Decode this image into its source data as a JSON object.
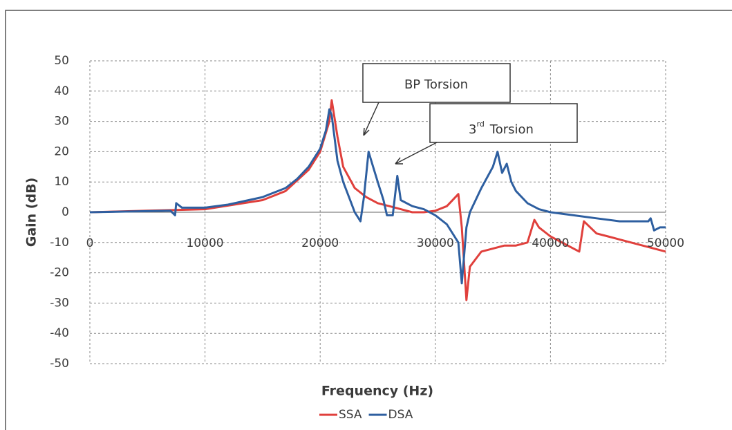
{
  "chart_data": {
    "type": "line",
    "x_label": "Frequency (Hz)",
    "y_label": "Gain (dB)",
    "xlim": [
      0,
      50000
    ],
    "xticks": [
      0,
      10000,
      20000,
      30000,
      40000,
      50000
    ],
    "ylim": [
      -50,
      50
    ],
    "yticks": [
      -50,
      -40,
      -30,
      -20,
      -10,
      0,
      10,
      20,
      30,
      40,
      50
    ],
    "grid": true,
    "legend": "bottom",
    "annotations": [
      {
        "text": "BP  Torsion"
      },
      {
        "text": "3",
        "superscript": "rd",
        "text_after": "Torsion"
      }
    ],
    "series": [
      {
        "name": "SSA",
        "color": "#e0403c",
        "x": [
          0,
          5000,
          10000,
          15000,
          17000,
          19000,
          20000,
          20800,
          21000,
          21500,
          22000,
          23000,
          24000,
          25000,
          26000,
          27000,
          28000,
          29000,
          30000,
          31000,
          32000,
          32300,
          32700,
          33000,
          34000,
          35000,
          36000,
          37000,
          38000,
          38600,
          39000,
          40000,
          41000,
          42000,
          42500,
          42900,
          44000,
          45000,
          46000,
          47000,
          48000,
          50000
        ],
        "values": [
          0,
          0.5,
          1,
          4,
          7,
          14,
          20,
          30,
          37,
          25,
          15,
          8,
          5,
          3,
          2,
          1,
          0,
          0,
          0.5,
          2,
          6,
          -5,
          -29,
          -18,
          -13,
          -12,
          -11,
          -11,
          -10,
          -2.5,
          -5,
          -8,
          -10,
          -12,
          -13,
          -3,
          -7,
          -8,
          -9,
          -10,
          -11,
          -13
        ]
      },
      {
        "name": "DSA",
        "color": "#2e5fa0",
        "x": [
          0,
          7000,
          7400,
          7500,
          8000,
          10000,
          12000,
          15000,
          17000,
          18000,
          19000,
          20000,
          20500,
          20800,
          21000,
          21500,
          22000,
          22500,
          23000,
          23500,
          23800,
          24200,
          24600,
          25000,
          25500,
          25800,
          26300,
          26700,
          27000,
          28000,
          29000,
          30000,
          31000,
          32000,
          32300,
          32700,
          33000,
          34000,
          35000,
          35400,
          35800,
          36200,
          36600,
          37000,
          38000,
          39000,
          40000,
          42000,
          44000,
          46000,
          48500,
          48700,
          49000,
          49500,
          50000
        ],
        "values": [
          0,
          0.5,
          -1,
          3,
          1.5,
          1.5,
          2.5,
          5,
          8,
          11,
          15,
          21,
          27,
          34,
          32,
          17,
          10,
          5,
          0,
          -3,
          5,
          20,
          15,
          10,
          4,
          -1,
          -1,
          12,
          4,
          2,
          1,
          -1,
          -4,
          -10,
          -23.5,
          -5,
          0,
          8,
          15,
          20,
          13,
          16,
          10,
          7,
          3,
          1,
          0,
          -1,
          -2,
          -3,
          -3,
          -2,
          -6,
          -5,
          -5
        ]
      }
    ]
  }
}
